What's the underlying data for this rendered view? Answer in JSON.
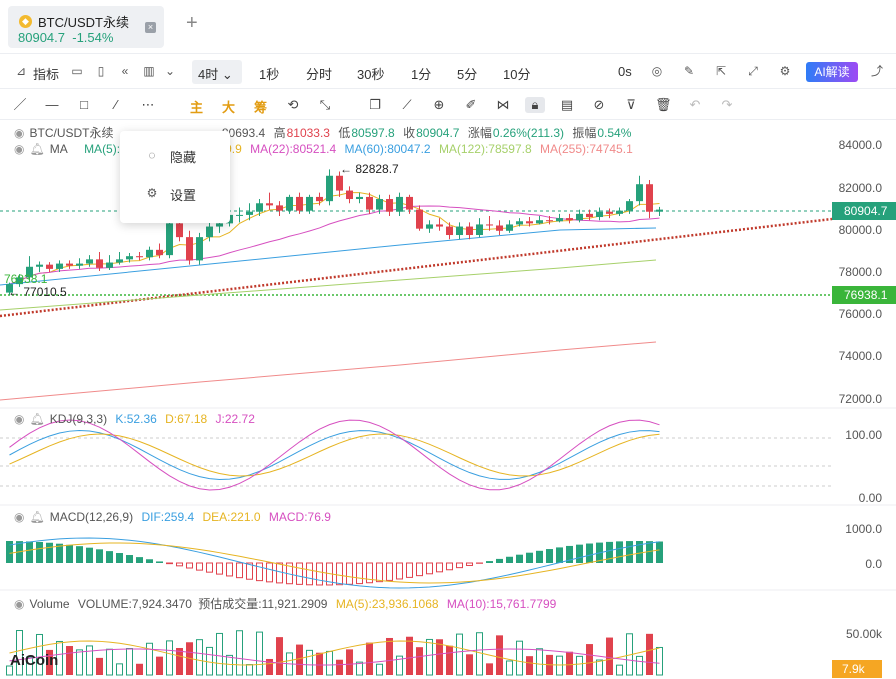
{
  "tab": {
    "coin_icon": "binance-coin-icon",
    "symbol": "BTC/USDT永续",
    "price": "80904.7",
    "change": "-1.54%"
  },
  "toolbar": {
    "indicator_label": "指标",
    "interval_selected": "4时",
    "intervals": [
      "1秒",
      "分时",
      "30秒",
      "1分",
      "5分",
      "10分"
    ],
    "countdown": "0s",
    "ai_label": "AI解读"
  },
  "drawbar": {
    "main": "主",
    "big": "大",
    "chip": "筹"
  },
  "main_legend": {
    "symbol": "BTC/USDT永续",
    "ohlc_prefix_hidden": "80693.4",
    "high_label": "高",
    "high": "81033.3",
    "low_label": "低",
    "low": "80597.8",
    "close_label": "收",
    "close": "80904.7",
    "change_label": "涨幅",
    "change": "0.26%(211.3)",
    "amp_label": "振幅",
    "amp": "0.54%",
    "ma_label": "MA",
    "ma5": "MA(5):8",
    "ma_hidden": "9.9",
    "ma22": "MA(22):80521.4",
    "ma60": "MA(60):80047.2",
    "ma122": "MA(122):78597.8",
    "ma255": "MA(255):74745.1"
  },
  "popup": {
    "hide_label": "隐藏",
    "settings_label": "设置"
  },
  "price_axis": [
    "84000.0",
    "82000.0",
    "80000.0",
    "78000.0",
    "76000.0",
    "74000.0",
    "72000.0"
  ],
  "price_tags": {
    "current": "80904.7",
    "level": "76938.1"
  },
  "annotations": {
    "high": "82828.7",
    "low": "77010.5",
    "left_level": "76938.1"
  },
  "kdj": {
    "name": "KDJ(9,3,3)",
    "k": "K:52.36",
    "d": "D:67.18",
    "j": "J:22.72",
    "axis": [
      "100.00",
      "0.00"
    ]
  },
  "macd": {
    "name": "MACD(12,26,9)",
    "dif": "DIF:259.4",
    "dea": "DEA:221.0",
    "macd": "MACD:76.9",
    "axis": [
      "1000.0",
      "0.0"
    ]
  },
  "volume": {
    "name": "Volume",
    "vol": "VOLUME:7,924.3470",
    "est": "预估成交量:11,921.2909",
    "ma5": "MA(5):23,936.1068",
    "ma10": "MA(10):15,761.7799",
    "axis": "50.00k",
    "tag": "7.9k"
  },
  "brand": {
    "logo": "AiCoin"
  },
  "colors": {
    "up": "#26a17b",
    "down": "#e0424d",
    "ma5": "#e6b422",
    "ma22": "#d64fc0",
    "ma60": "#3a9fe0",
    "ma122": "#a6d06a",
    "ma255": "#f08a8a",
    "accent": "#2f7cf6"
  },
  "chart_data": {
    "type": "candlestick",
    "price_range": [
      71000,
      85000
    ],
    "candles": [
      [
        76980,
        77380,
        76880,
        77450
      ],
      [
        77380,
        77700,
        77250,
        77850
      ],
      [
        77700,
        78200,
        77600,
        78700
      ],
      [
        78200,
        78300,
        77950,
        78450
      ],
      [
        78300,
        78100,
        77950,
        78420
      ],
      [
        78100,
        78350,
        77950,
        78500
      ],
      [
        78350,
        78250,
        78100,
        78500
      ],
      [
        78250,
        78350,
        78100,
        78600
      ],
      [
        78350,
        78550,
        78200,
        78750
      ],
      [
        78550,
        78150,
        78000,
        78900
      ],
      [
        78150,
        78400,
        78050,
        78750
      ],
      [
        78400,
        78550,
        78300,
        78900
      ],
      [
        78550,
        78700,
        78400,
        78850
      ],
      [
        78700,
        78650,
        78500,
        78900
      ],
      [
        78650,
        79000,
        78500,
        79150
      ],
      [
        79000,
        78750,
        78600,
        79300
      ],
      [
        78750,
        80250,
        78600,
        80450
      ],
      [
        80250,
        79600,
        79400,
        80600
      ],
      [
        79600,
        78500,
        78300,
        79900
      ],
      [
        78500,
        79600,
        78300,
        79800
      ],
      [
        79600,
        80100,
        79400,
        80400
      ],
      [
        80100,
        80250,
        79800,
        80500
      ],
      [
        80250,
        80650,
        80100,
        80800
      ],
      [
        80650,
        80650,
        80300,
        81000
      ],
      [
        80650,
        80800,
        80400,
        81200
      ],
      [
        80800,
        81200,
        80600,
        81400
      ],
      [
        81200,
        81100,
        80900,
        81700
      ],
      [
        81100,
        80850,
        80600,
        81300
      ],
      [
        80850,
        81500,
        80700,
        81600
      ],
      [
        81500,
        80850,
        80700,
        81700
      ],
      [
        80850,
        81500,
        80700,
        81600
      ],
      [
        81500,
        81300,
        81100,
        81700
      ],
      [
        81300,
        82500,
        81100,
        82800
      ],
      [
        82500,
        81800,
        81500,
        82700
      ],
      [
        81800,
        81400,
        81200,
        82000
      ],
      [
        81400,
        81500,
        81200,
        81700
      ],
      [
        81500,
        80900,
        80700,
        81700
      ],
      [
        80900,
        81400,
        80700,
        81600
      ],
      [
        81400,
        80800,
        80600,
        81600
      ],
      [
        80800,
        81500,
        80600,
        81700
      ],
      [
        81500,
        80900,
        80700,
        81600
      ],
      [
        80900,
        80000,
        79900,
        81100
      ],
      [
        80000,
        80200,
        79800,
        80400
      ],
      [
        80200,
        80100,
        79900,
        80500
      ],
      [
        80100,
        79700,
        79500,
        80300
      ],
      [
        79700,
        80100,
        79500,
        80300
      ],
      [
        80100,
        79700,
        79500,
        80300
      ],
      [
        79700,
        80200,
        79600,
        80500
      ],
      [
        80200,
        80150,
        79900,
        80600
      ],
      [
        80150,
        79900,
        79700,
        80400
      ],
      [
        79900,
        80200,
        79800,
        80400
      ],
      [
        80200,
        80350,
        80100,
        80500
      ],
      [
        80350,
        80250,
        80100,
        80550
      ],
      [
        80250,
        80400,
        80200,
        80600
      ],
      [
        80400,
        80350,
        80200,
        80600
      ],
      [
        80350,
        80500,
        80300,
        80700
      ],
      [
        80500,
        80400,
        80250,
        80700
      ],
      [
        80400,
        80700,
        80300,
        80900
      ],
      [
        80700,
        80550,
        80400,
        80900
      ],
      [
        80550,
        80800,
        80400,
        81000
      ],
      [
        80800,
        80700,
        80500,
        80950
      ],
      [
        80700,
        80850,
        80600,
        81000
      ],
      [
        80850,
        81300,
        80700,
        81400
      ],
      [
        81300,
        82100,
        81100,
        82500
      ],
      [
        82100,
        80800,
        80500,
        82300
      ],
      [
        80800,
        80900,
        80600,
        81030
      ]
    ]
  }
}
